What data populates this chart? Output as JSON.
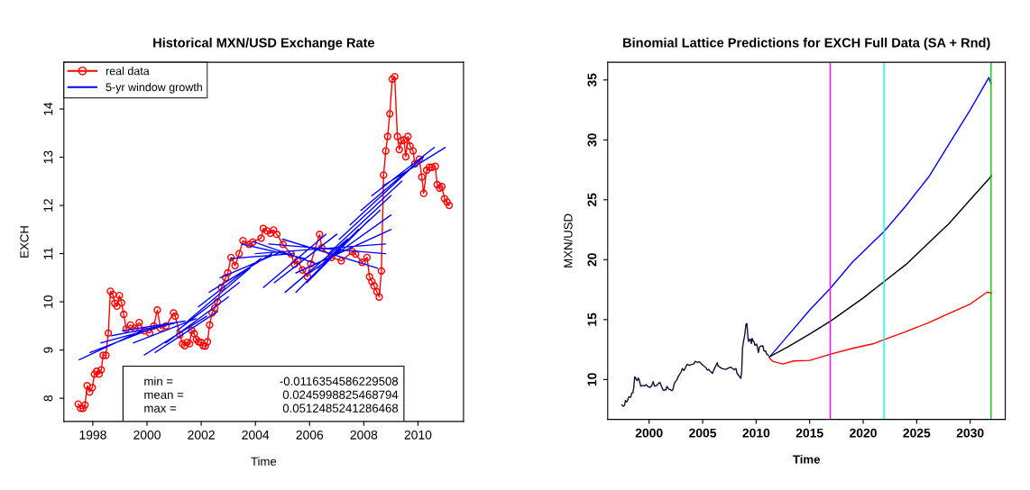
{
  "chart_data": [
    {
      "type": "line",
      "title": "Historical MXN/USD Exchange Rate",
      "xlabel": "Time",
      "ylabel": "EXCH",
      "xlim": [
        1996.93,
        2011.68
      ],
      "ylim": [
        7.52,
        14.97
      ],
      "xticks": [
        1998,
        2000,
        2002,
        2004,
        2006,
        2008,
        2010
      ],
      "yticks": [
        8,
        9,
        10,
        11,
        12,
        13,
        14
      ],
      "grid": false,
      "legend": "top left",
      "series": [
        {
          "name": "real data",
          "color": "#ff0000",
          "marker": "circle",
          "line_style": "solid",
          "x": [
            1997.46,
            1997.55,
            1997.64,
            1997.71,
            1997.79,
            1997.88,
            1997.98,
            1998.06,
            1998.14,
            1998.23,
            1998.31,
            1998.38,
            1998.48,
            1998.57,
            1998.65,
            1998.74,
            1998.81,
            1998.89,
            1998.98,
            1999.06,
            1999.14,
            1999.23,
            1999.39,
            1999.55,
            1999.71,
            1999.9,
            2000.1,
            2000.25,
            2000.38,
            2000.5,
            2000.7,
            2000.98,
            2001.04,
            2001.21,
            2001.31,
            2001.39,
            2001.48,
            2001.57,
            2001.65,
            2001.74,
            2001.82,
            2001.9,
            2001.99,
            2002.07,
            2002.15,
            2002.23,
            2002.31,
            2002.4,
            2002.5,
            2002.6,
            2002.75,
            2002.9,
            2002.98,
            2003.1,
            2003.25,
            2003.4,
            2003.54,
            2003.77,
            2003.9,
            2004.21,
            2004.29,
            2004.43,
            2004.55,
            2004.67,
            2004.79,
            2005.02,
            2005.32,
            2005.44,
            2005.56,
            2005.74,
            2005.92,
            2006.04,
            2006.37,
            2006.45,
            2006.81,
            2007.17,
            2007.58,
            2007.7,
            2007.94,
            2008.12,
            2008.21,
            2008.3,
            2008.38,
            2008.48,
            2008.57,
            2008.65,
            2008.73,
            2008.81,
            2008.88,
            2008.96,
            2009.05,
            2009.14,
            2009.24,
            2009.31,
            2009.39,
            2009.48,
            2009.55,
            2009.63,
            2009.71,
            2009.82,
            2009.88,
            2010.05,
            2010.14,
            2010.21,
            2010.32,
            2010.42,
            2010.52,
            2010.64,
            2010.71,
            2010.8,
            2010.88,
            2010.98,
            2011.07,
            2011.15
          ],
          "values": [
            7.88,
            7.79,
            7.79,
            7.86,
            8.26,
            8.13,
            8.22,
            8.5,
            8.56,
            8.5,
            8.59,
            8.89,
            8.89,
            9.35,
            10.22,
            10.15,
            9.97,
            9.91,
            10.13,
            9.98,
            9.74,
            9.44,
            9.52,
            9.45,
            9.57,
            9.4,
            9.35,
            9.5,
            9.83,
            9.45,
            9.5,
            9.77,
            9.7,
            9.32,
            9.13,
            9.09,
            9.16,
            9.13,
            9.41,
            9.34,
            9.22,
            9.17,
            9.16,
            9.09,
            9.08,
            9.17,
            9.52,
            9.77,
            9.87,
            10.0,
            10.3,
            10.5,
            10.6,
            10.92,
            10.75,
            11.0,
            11.27,
            11.19,
            11.24,
            11.32,
            11.52,
            11.47,
            11.42,
            11.49,
            11.4,
            11.19,
            10.99,
            10.78,
            10.85,
            10.66,
            10.52,
            10.79,
            11.4,
            11.12,
            10.92,
            10.85,
            11.04,
            10.99,
            10.82,
            10.92,
            10.52,
            10.42,
            10.33,
            10.21,
            10.1,
            10.64,
            12.63,
            13.13,
            13.43,
            13.9,
            14.62,
            14.67,
            13.43,
            13.16,
            13.34,
            13.36,
            13.01,
            13.43,
            13.23,
            13.13,
            12.86,
            12.96,
            12.59,
            12.25,
            12.73,
            12.79,
            12.79,
            12.81,
            12.43,
            12.36,
            12.39,
            12.14,
            12.07,
            12.0
          ]
        },
        {
          "name": "5-yr window growth",
          "color": "#0000ff",
          "marker": "none",
          "line_style": "solid",
          "x": [
            1997.5,
            1999.8,
            null,
            1997.9,
            2000.2,
            null,
            1998.3,
            2000.6,
            null,
            1998.7,
            2001.0,
            null,
            1999.1,
            2001.4,
            null,
            1999.5,
            2001.8,
            null,
            1999.9,
            2002.2,
            null,
            2000.3,
            2002.6,
            null,
            2000.7,
            2003.0,
            null,
            2001.1,
            2003.4,
            null,
            2001.5,
            2003.8,
            null,
            2001.9,
            2004.2,
            null,
            2002.3,
            2004.6,
            null,
            2002.7,
            2005.0,
            null,
            2003.1,
            2005.4,
            null,
            2003.5,
            2005.8,
            null,
            2003.9,
            2006.2,
            null,
            2004.3,
            2006.6,
            null,
            2004.7,
            2007.0,
            null,
            2005.1,
            2007.4,
            null,
            2005.5,
            2007.8,
            null,
            2005.9,
            2008.2,
            null,
            2006.3,
            2008.6,
            null,
            2006.7,
            2009.0,
            null,
            2007.1,
            2009.4,
            null,
            2007.5,
            2009.8,
            null,
            2007.9,
            2010.2,
            null,
            2008.3,
            2010.6,
            null,
            2008.7,
            2011.0,
            null,
            2005.0,
            2008.5,
            null,
            2004.5,
            2008.8,
            null,
            2004.0,
            2008.8,
            null,
            2005.5,
            2009.0,
            null,
            2006.0,
            2009.0
          ],
          "values": [
            8.8,
            9.4,
            null,
            8.95,
            9.45,
            null,
            9.15,
            9.5,
            null,
            9.3,
            9.55,
            null,
            9.4,
            9.6,
            null,
            9.15,
            9.65,
            null,
            8.9,
            9.7,
            null,
            8.95,
            9.8,
            null,
            9.15,
            10.1,
            null,
            9.4,
            10.4,
            null,
            9.6,
            10.7,
            null,
            9.9,
            10.9,
            null,
            10.2,
            11.0,
            null,
            10.5,
            11.05,
            null,
            10.9,
            11.0,
            null,
            11.2,
            10.9,
            null,
            11.25,
            10.8,
            null,
            10.3,
            11.4,
            null,
            10.4,
            11.4,
            null,
            10.2,
            11.3,
            null,
            10.2,
            11.5,
            null,
            10.4,
            11.7,
            null,
            10.7,
            11.9,
            null,
            11.0,
            12.2,
            null,
            11.3,
            12.5,
            null,
            11.6,
            12.8,
            null,
            11.9,
            13.0,
            null,
            12.2,
            13.2,
            null,
            12.4,
            13.2,
            null,
            11.3,
            10.7,
            null,
            11.2,
            11.0,
            null,
            11.0,
            11.2,
            null,
            10.6,
            11.5,
            null,
            10.6,
            11.8
          ]
        }
      ],
      "annotations": [
        "min =",
        "-0.0116354586229508",
        "mean =",
        "0.0245998825468794",
        "max =",
        "0.0512485241286468"
      ]
    },
    {
      "type": "line",
      "title": "Binomial Lattice Predictions for EXCH Full Data (SA + Rnd)",
      "xlabel": "Time",
      "ylabel": "MXN/USD",
      "xlim": [
        1996.13,
        2033.28
      ],
      "ylim": [
        6.67,
        36.48
      ],
      "xticks": [
        2000,
        2005,
        2010,
        2015,
        2020,
        2025,
        2030
      ],
      "yticks": [
        10,
        15,
        20,
        25,
        30,
        35
      ],
      "grid": false,
      "legend": false,
      "series": [
        {
          "color": "#1a0a33",
          "marker": "none",
          "line_style": "solid",
          "x": [
            1997.46,
            1997.55,
            1997.64,
            1997.71,
            1997.79,
            1997.88,
            1997.98,
            1998.06,
            1998.14,
            1998.23,
            1998.31,
            1998.38,
            1998.48,
            1998.57,
            1998.65,
            1998.74,
            1998.81,
            1998.89,
            1998.98,
            1999.06,
            1999.14,
            1999.23,
            1999.39,
            1999.55,
            1999.71,
            1999.9,
            2000.1,
            2000.25,
            2000.38,
            2000.5,
            2000.7,
            2000.98,
            2001.04,
            2001.21,
            2001.31,
            2001.39,
            2001.48,
            2001.57,
            2001.65,
            2001.74,
            2001.82,
            2001.9,
            2001.99,
            2002.07,
            2002.15,
            2002.23,
            2002.31,
            2002.4,
            2002.5,
            2002.6,
            2002.75,
            2002.9,
            2002.98,
            2003.1,
            2003.25,
            2003.4,
            2003.54,
            2003.77,
            2003.9,
            2004.21,
            2004.29,
            2004.43,
            2004.55,
            2004.67,
            2004.79,
            2005.02,
            2005.32,
            2005.44,
            2005.56,
            2005.74,
            2005.92,
            2006.04,
            2006.37,
            2006.45,
            2006.81,
            2007.17,
            2007.58,
            2007.7,
            2007.94,
            2008.12,
            2008.21,
            2008.3,
            2008.38,
            2008.48,
            2008.57,
            2008.65,
            2008.73,
            2008.81,
            2008.88,
            2008.96,
            2009.05,
            2009.14,
            2009.24,
            2009.31,
            2009.39,
            2009.48,
            2009.55,
            2009.63,
            2009.71,
            2009.82,
            2009.88,
            2010.05,
            2010.14,
            2010.21,
            2010.32,
            2010.42,
            2010.52,
            2010.64,
            2010.71,
            2010.8,
            2010.88,
            2010.98,
            2011.07,
            2011.15
          ],
          "values": [
            7.88,
            7.79,
            7.79,
            7.86,
            8.26,
            8.13,
            8.22,
            8.5,
            8.56,
            8.5,
            8.59,
            8.89,
            8.89,
            9.35,
            10.22,
            10.15,
            9.97,
            9.91,
            10.13,
            9.98,
            9.74,
            9.44,
            9.52,
            9.45,
            9.57,
            9.4,
            9.35,
            9.5,
            9.83,
            9.45,
            9.5,
            9.77,
            9.7,
            9.32,
            9.13,
            9.09,
            9.16,
            9.13,
            9.41,
            9.34,
            9.22,
            9.17,
            9.16,
            9.09,
            9.08,
            9.17,
            9.52,
            9.77,
            9.87,
            10.0,
            10.3,
            10.5,
            10.6,
            10.92,
            10.75,
            11.0,
            11.27,
            11.19,
            11.24,
            11.32,
            11.52,
            11.47,
            11.42,
            11.49,
            11.4,
            11.19,
            10.99,
            10.78,
            10.85,
            10.66,
            10.52,
            10.79,
            11.4,
            11.12,
            10.92,
            10.85,
            11.04,
            10.99,
            10.82,
            10.92,
            10.52,
            10.42,
            10.33,
            10.21,
            10.1,
            10.64,
            12.63,
            13.13,
            13.43,
            13.9,
            14.62,
            14.67,
            13.43,
            13.16,
            13.34,
            13.36,
            13.01,
            13.43,
            13.23,
            13.13,
            12.86,
            12.96,
            12.59,
            12.25,
            12.73,
            12.79,
            12.79,
            12.81,
            12.43,
            12.36,
            12.39,
            12.14,
            12.07,
            12.0
          ]
        },
        {
          "color": "#0000ff",
          "marker": "none",
          "line_style": "solid",
          "x": [
            2011.25,
            2013,
            2015,
            2016.92,
            2019,
            2021.95,
            2024,
            2026.2,
            2028.26,
            2030,
            2031.74,
            2031.95
          ],
          "values": [
            11.88,
            13.7,
            15.8,
            17.6,
            19.8,
            22.36,
            24.5,
            27.0,
            30.0,
            32.5,
            35.2,
            34.7
          ]
        },
        {
          "color": "#000000",
          "marker": "none",
          "line_style": "solid",
          "x": [
            2011.25,
            2013,
            2015,
            2017,
            2020,
            2022,
            2024,
            2026,
            2028,
            2030,
            2032
          ],
          "values": [
            11.9,
            12.75,
            13.8,
            14.9,
            16.8,
            18.2,
            19.6,
            21.3,
            23.0,
            25.0,
            27.0
          ]
        },
        {
          "color": "#ff0000",
          "marker": "none",
          "line_style": "solid",
          "x": [
            2011.25,
            2011.6,
            2012.5,
            2013.5,
            2015,
            2016.9,
            2019,
            2021,
            2022,
            2024,
            2026,
            2028,
            2030,
            2031.6,
            2032
          ],
          "values": [
            11.8,
            11.5,
            11.3,
            11.55,
            11.6,
            12.1,
            12.6,
            13.0,
            13.35,
            14.0,
            14.7,
            15.5,
            16.3,
            17.3,
            17.2
          ]
        }
      ],
      "ref_lines": [
        {
          "axis": "x",
          "value": 2016.92,
          "color": "#ff00ff"
        },
        {
          "axis": "x",
          "value": 2021.95,
          "color": "#00ffff"
        },
        {
          "axis": "x",
          "value": 2031.95,
          "color": "#00cc00"
        }
      ]
    }
  ]
}
